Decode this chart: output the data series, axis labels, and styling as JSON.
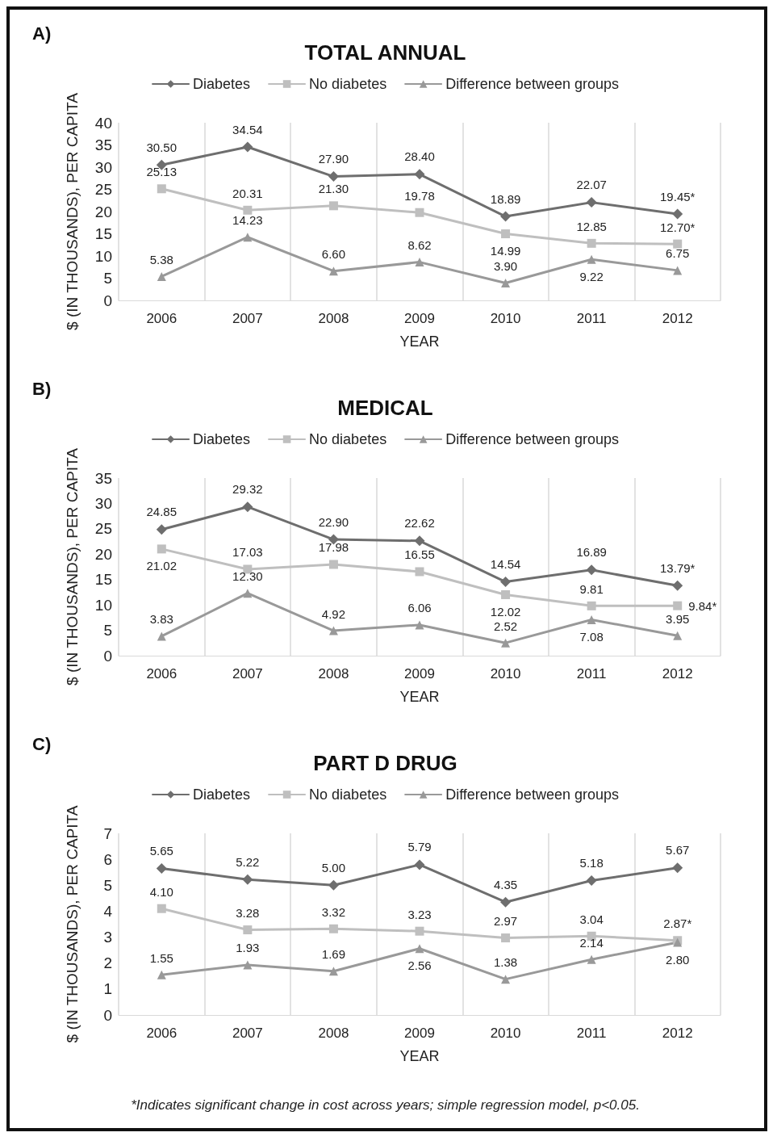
{
  "chart_data": [
    {
      "type": "line",
      "title": "TOTAL ANNUAL",
      "xlabel": "YEAR",
      "ylabel": "$ (IN THOUSANDS), PER CAPITA",
      "annotations": [
        "A)"
      ],
      "categories": [
        "2006",
        "2007",
        "2008",
        "2009",
        "2010",
        "2011",
        "2012"
      ],
      "ylim": [
        0,
        40
      ],
      "yticks": [
        0,
        5,
        10,
        15,
        20,
        25,
        30,
        35,
        40
      ],
      "grid": "x",
      "legend": "top",
      "line_style": "solid",
      "series": [
        {
          "name": "Diabetes",
          "color": "#6e6e6e",
          "marker": "diamond",
          "values": [
            30.5,
            34.54,
            27.9,
            28.4,
            18.89,
            22.07,
            19.45
          ],
          "value_labels": [
            "30.50",
            "34.54",
            "27.90",
            "28.40",
            "18.89",
            "22.07",
            "19.45*"
          ]
        },
        {
          "name": "No diabetes",
          "color": "#bfbfbf",
          "marker": "square",
          "values": [
            25.13,
            20.31,
            21.3,
            19.78,
            14.99,
            12.85,
            12.7
          ],
          "value_labels": [
            "25.13",
            "20.31",
            "21.30",
            "19.78",
            "14.99",
            "12.85",
            "12.70*"
          ]
        },
        {
          "name": "Difference between groups",
          "color": "#999999",
          "marker": "triangle",
          "values": [
            5.38,
            14.23,
            6.6,
            8.62,
            3.9,
            9.22,
            6.75
          ],
          "value_labels": [
            "5.38",
            "14.23",
            "6.60",
            "8.62",
            "3.90",
            "9.22",
            "6.75"
          ]
        }
      ]
    },
    {
      "type": "line",
      "title": "MEDICAL",
      "xlabel": "YEAR",
      "ylabel": "$ (IN THOUSANDS), PER CAPITA",
      "annotations": [
        "B)"
      ],
      "categories": [
        "2006",
        "2007",
        "2008",
        "2009",
        "2010",
        "2011",
        "2012"
      ],
      "ylim": [
        0,
        35
      ],
      "yticks": [
        0,
        5,
        10,
        15,
        20,
        25,
        30,
        35
      ],
      "grid": "x",
      "legend": "top",
      "line_style": "solid",
      "series": [
        {
          "name": "Diabetes",
          "color": "#6e6e6e",
          "marker": "diamond",
          "values": [
            24.85,
            29.32,
            22.9,
            22.62,
            14.54,
            16.89,
            13.79
          ],
          "value_labels": [
            "24.85",
            "29.32",
            "22.90",
            "22.62",
            "14.54",
            "16.89",
            "13.79*"
          ]
        },
        {
          "name": "No diabetes",
          "color": "#bfbfbf",
          "marker": "square",
          "values": [
            21.02,
            17.03,
            17.98,
            16.55,
            12.02,
            9.81,
            9.84
          ],
          "value_labels": [
            "21.02",
            "17.03",
            "17.98",
            "16.55",
            "12.02",
            "9.81",
            "9.84*"
          ]
        },
        {
          "name": "Difference between groups",
          "color": "#999999",
          "marker": "triangle",
          "values": [
            3.83,
            12.3,
            4.92,
            6.06,
            2.52,
            7.08,
            3.95
          ],
          "value_labels": [
            "3.83",
            "12.30",
            "4.92",
            "6.06",
            "2.52",
            "7.08",
            "3.95"
          ]
        }
      ]
    },
    {
      "type": "line",
      "title": "PART D DRUG",
      "xlabel": "YEAR",
      "ylabel": "$ (IN THOUSANDS), PER CAPITA",
      "annotations": [
        "C)",
        "*Indicates significant change in cost across years; simple regression model, p<0.05."
      ],
      "categories": [
        "2006",
        "2007",
        "2008",
        "2009",
        "2010",
        "2011",
        "2012"
      ],
      "ylim": [
        0,
        7
      ],
      "yticks": [
        0,
        1,
        2,
        3,
        4,
        5,
        6,
        7
      ],
      "grid": "x",
      "legend": "top",
      "line_style": "solid",
      "series": [
        {
          "name": "Diabetes",
          "color": "#6e6e6e",
          "marker": "diamond",
          "values": [
            5.65,
            5.22,
            5.0,
            5.79,
            4.35,
            5.18,
            5.67
          ],
          "value_labels": [
            "5.65",
            "5.22",
            "5.00",
            "5.79",
            "4.35",
            "5.18",
            "5.67"
          ]
        },
        {
          "name": "No diabetes",
          "color": "#bfbfbf",
          "marker": "square",
          "values": [
            4.1,
            3.28,
            3.32,
            3.23,
            2.97,
            3.04,
            2.87
          ],
          "value_labels": [
            "4.10",
            "3.28",
            "3.32",
            "3.23",
            "2.97",
            "3.04",
            "2.87*"
          ]
        },
        {
          "name": "Difference between groups",
          "color": "#999999",
          "marker": "triangle",
          "values": [
            1.55,
            1.93,
            1.69,
            2.56,
            1.38,
            2.14,
            2.8
          ],
          "value_labels": [
            "1.55",
            "1.93",
            "1.69",
            "2.56",
            "1.38",
            "2.14",
            "2.80"
          ]
        }
      ]
    }
  ]
}
